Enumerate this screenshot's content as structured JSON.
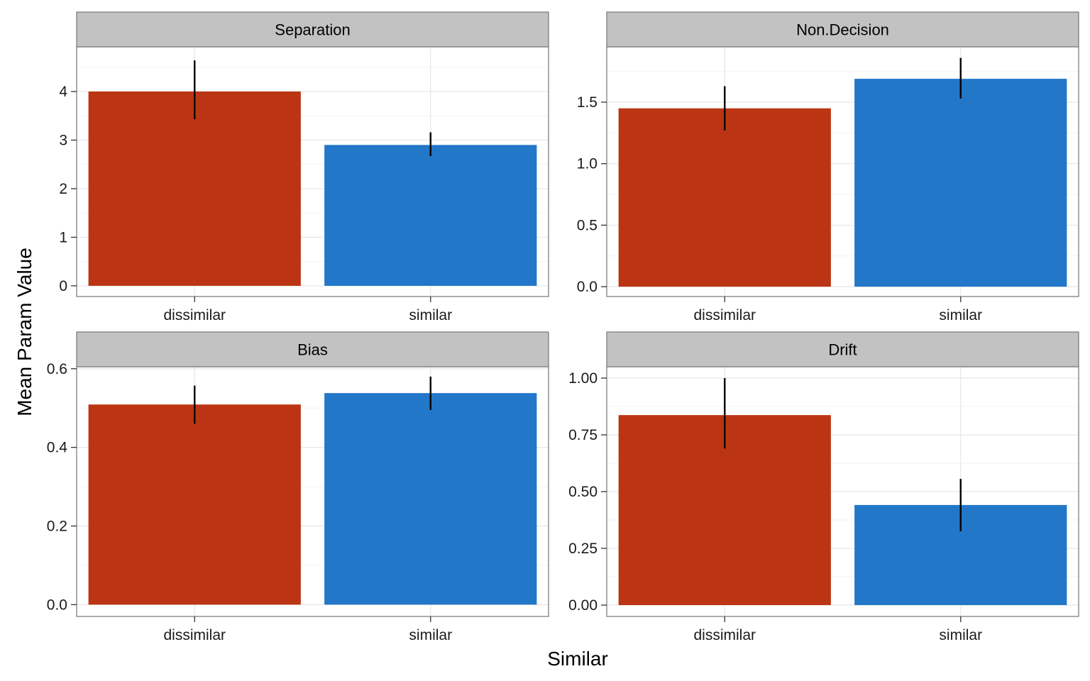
{
  "chart_data": {
    "type": "bar",
    "layout": "facet-grid 2x2, free y scales",
    "xlabel": "Similar",
    "ylabel": "Mean Param Value",
    "categories": [
      "dissimilar",
      "similar"
    ],
    "colors": {
      "dissimilar": "#BB3514",
      "similar": "#2277C8"
    },
    "grid": true,
    "legend": "none",
    "panels": [
      {
        "title": "Separation",
        "values": [
          4.0,
          2.9
        ],
        "error_low": [
          3.43,
          2.67
        ],
        "error_high": [
          4.64,
          3.16
        ],
        "ylim": [
          -0.22,
          4.92
        ],
        "yticks": [
          0,
          1,
          2,
          3,
          4
        ],
        "ytick_labels": [
          "0",
          "1",
          "2",
          "3",
          "4"
        ]
      },
      {
        "title": "Non.Decision",
        "values": [
          1.45,
          1.69
        ],
        "error_low": [
          1.27,
          1.53
        ],
        "error_high": [
          1.63,
          1.86
        ],
        "ylim": [
          -0.08,
          1.95
        ],
        "yticks": [
          0,
          0.5,
          1.0,
          1.5
        ],
        "ytick_labels": [
          "0.0",
          "0.5",
          "1.0",
          "1.5"
        ]
      },
      {
        "title": "Bias",
        "values": [
          0.509,
          0.538
        ],
        "error_low": [
          0.46,
          0.495
        ],
        "error_high": [
          0.557,
          0.58
        ],
        "ylim": [
          -0.03,
          0.605
        ],
        "yticks": [
          0,
          0.2,
          0.4,
          0.6
        ],
        "ytick_labels": [
          "0.0",
          "0.2",
          "0.4",
          "0.6"
        ]
      },
      {
        "title": "Drift",
        "values": [
          0.837,
          0.441
        ],
        "error_low": [
          0.69,
          0.325
        ],
        "error_high": [
          1.0,
          0.556
        ],
        "ylim": [
          -0.05,
          1.05
        ],
        "yticks": [
          0,
          0.25,
          0.5,
          0.75,
          1.0
        ],
        "ytick_labels": [
          "0.00",
          "0.25",
          "0.50",
          "0.75",
          "1.00"
        ]
      }
    ]
  }
}
